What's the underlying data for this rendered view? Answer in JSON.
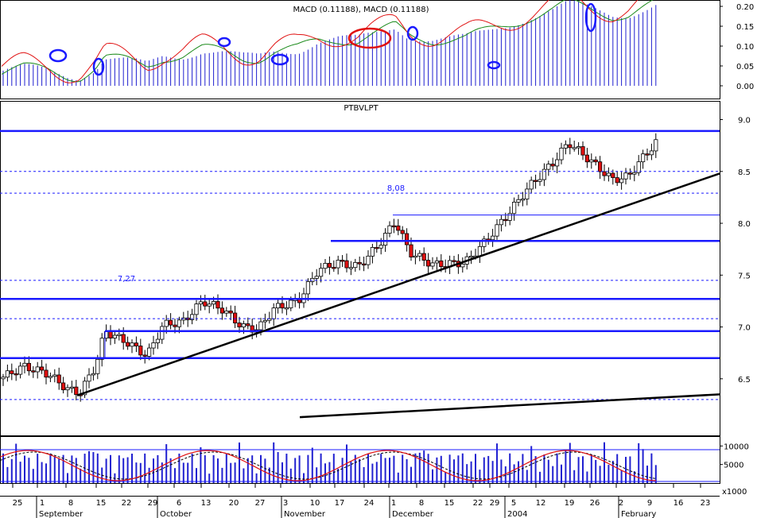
{
  "chart_data": [
    {
      "type": "line",
      "title": "MACD (0.11188), MACD (0.11188)",
      "ylim": [
        0,
        0.25
      ],
      "yticks": [
        "0.20",
        "0.15",
        "0.10",
        "0.05",
        "0.00"
      ],
      "colors": {
        "macd": "#e01010",
        "signal": "#1a8a1a",
        "histogram": "#2020d0",
        "highlight_blue": "#1a1aff",
        "highlight_red": "#e01010"
      }
    },
    {
      "type": "candlestick",
      "title": "PTBVLPT",
      "ylim": [
        6.1,
        9.05
      ],
      "yticks": [
        "9.0",
        "8.5",
        "8.0",
        "7.5",
        "7.0",
        "6.5"
      ],
      "annotations": [
        {
          "text": "7,27",
          "x": "Sep 22",
          "y": 7.27
        },
        {
          "text": "8,08",
          "x": "Dec 1",
          "y": 8.08
        }
      ],
      "levels": [
        8.89,
        8.5,
        8.29,
        8.08,
        7.83,
        7.45,
        7.27,
        7.08,
        6.96,
        6.7,
        6.3
      ],
      "colors": {
        "up": "#ffffff",
        "down": "#e01010",
        "trend": "#000000",
        "level_line": "#1a1aff"
      }
    },
    {
      "type": "bar",
      "title": "",
      "ylim": [
        0,
        12000
      ],
      "yticks": [
        "10000",
        "5000"
      ],
      "unit_label": "x1000",
      "colors": {
        "volume": "#2020d0",
        "stoch_k": "#e01010",
        "stoch_d": "#000000"
      }
    }
  ],
  "xaxis": {
    "day_ticks": [
      "25",
      "1",
      "8",
      "15",
      "22",
      "29",
      "6",
      "13",
      "20",
      "27",
      "3",
      "10",
      "17",
      "24",
      "1",
      "8",
      "15",
      "22",
      "29",
      "5",
      "12",
      "19",
      "26",
      "2",
      "9",
      "16",
      "23"
    ],
    "months": [
      {
        "label": "September"
      },
      {
        "label": "October"
      },
      {
        "label": "November"
      },
      {
        "label": "December"
      },
      {
        "label": "2004"
      },
      {
        "label": "February"
      }
    ]
  }
}
